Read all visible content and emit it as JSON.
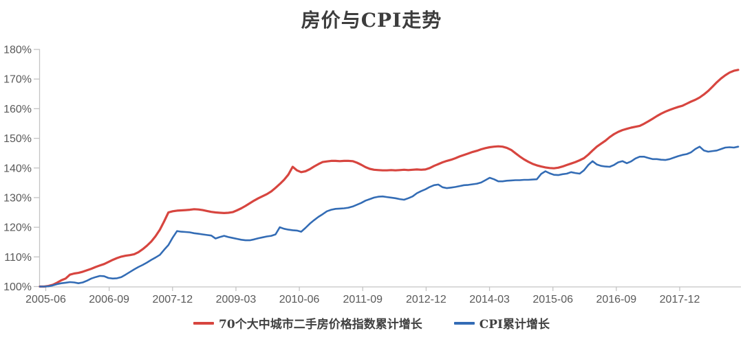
{
  "title": "房价与CPI走势",
  "colors": {
    "house_price_line": "#d7453f",
    "cpi_line": "#336cb5",
    "axis": "#c3c3c3",
    "tick_text": "#595959",
    "title_text": "#3d3d3d"
  },
  "chart_data": {
    "type": "line",
    "title": "房价与CPI走势",
    "xlabel": "",
    "ylabel": "",
    "ylim": [
      100,
      180
    ],
    "y_tick_step": 10,
    "y_tick_labels": [
      "100%",
      "110%",
      "120%",
      "130%",
      "140%",
      "150%",
      "160%",
      "170%",
      "180%"
    ],
    "x_tick_labels": [
      "2005-06",
      "2006-09",
      "2007-12",
      "2009-03",
      "2010-06",
      "2011-09",
      "2012-12",
      "2014-03",
      "2015-06",
      "2016-09",
      "2017-12"
    ],
    "x_tick_interval_months": 15,
    "x_start_month": "2005-06",
    "grid": false,
    "legend_position": "bottom",
    "series": [
      {
        "name": "70个大中城市二手房价格指数累计增长",
        "color": "#d7453f",
        "stroke_width": 3.2,
        "values": [
          100,
          100,
          100.2,
          100.6,
          101.3,
          102.1,
          102.7,
          104.0,
          104.4,
          104.6,
          105.0,
          105.5,
          106.0,
          106.6,
          107.1,
          107.6,
          108.3,
          109.0,
          109.6,
          110.1,
          110.4,
          110.6,
          110.9,
          111.6,
          112.6,
          113.8,
          115.2,
          117.0,
          119.2,
          122.0,
          125.0,
          125.4,
          125.6,
          125.7,
          125.8,
          125.9,
          126.1,
          126.0,
          125.8,
          125.5,
          125.2,
          125.0,
          124.9,
          124.8,
          124.9,
          125.1,
          125.7,
          126.4,
          127.2,
          128.1,
          129.0,
          129.8,
          130.5,
          131.2,
          132.1,
          133.3,
          134.6,
          136.0,
          137.8,
          140.4,
          139.2,
          138.6,
          138.9,
          139.6,
          140.5,
          141.3,
          142.0,
          142.2,
          142.4,
          142.4,
          142.3,
          142.4,
          142.4,
          142.3,
          141.8,
          141.1,
          140.3,
          139.7,
          139.4,
          139.3,
          139.2,
          139.2,
          139.3,
          139.2,
          139.3,
          139.4,
          139.3,
          139.4,
          139.5,
          139.4,
          139.5,
          140.0,
          140.7,
          141.3,
          141.9,
          142.4,
          142.8,
          143.3,
          143.9,
          144.4,
          144.9,
          145.4,
          145.8,
          146.3,
          146.7,
          147.0,
          147.2,
          147.3,
          147.2,
          146.8,
          146.1,
          145.0,
          143.9,
          142.9,
          142.1,
          141.4,
          140.9,
          140.5,
          140.2,
          140.0,
          139.9,
          140.1,
          140.5,
          141.0,
          141.5,
          142.0,
          142.6,
          143.3,
          144.5,
          145.9,
          147.2,
          148.2,
          149.2,
          150.4,
          151.4,
          152.2,
          152.8,
          153.2,
          153.6,
          153.9,
          154.2,
          154.9,
          155.7,
          156.6,
          157.5,
          158.3,
          159.0,
          159.6,
          160.1,
          160.6,
          161.0,
          161.7,
          162.4,
          163.0,
          163.8,
          164.8,
          166.0,
          167.4,
          168.9,
          170.2,
          171.3,
          172.2,
          172.8,
          173.1
        ]
      },
      {
        "name": "CPI累计增长",
        "color": "#336cb5",
        "stroke_width": 2.6,
        "values": [
          100,
          100,
          100.1,
          100.4,
          100.8,
          101.1,
          101.3,
          101.5,
          101.4,
          101.1,
          101.4,
          102.0,
          102.7,
          103.2,
          103.6,
          103.5,
          102.9,
          102.7,
          102.8,
          103.2,
          104.0,
          104.9,
          105.8,
          106.6,
          107.3,
          108.1,
          109.0,
          109.8,
          110.7,
          112.4,
          114.0,
          116.5,
          118.7,
          118.5,
          118.4,
          118.3,
          118.0,
          117.8,
          117.6,
          117.4,
          117.2,
          116.2,
          116.7,
          117.1,
          116.7,
          116.4,
          116.1,
          115.8,
          115.6,
          115.6,
          115.9,
          116.3,
          116.6,
          116.9,
          117.1,
          117.6,
          120.0,
          119.5,
          119.2,
          119.0,
          118.9,
          118.5,
          119.8,
          121.2,
          122.4,
          123.5,
          124.4,
          125.4,
          125.9,
          126.2,
          126.3,
          126.4,
          126.6,
          127.0,
          127.6,
          128.2,
          129.0,
          129.5,
          130.0,
          130.3,
          130.4,
          130.2,
          130.0,
          129.8,
          129.5,
          129.3,
          129.8,
          130.4,
          131.5,
          132.2,
          132.8,
          133.6,
          134.2,
          134.4,
          133.5,
          133.2,
          133.4,
          133.6,
          133.9,
          134.2,
          134.3,
          134.5,
          134.7,
          135.1,
          135.9,
          136.7,
          136.2,
          135.5,
          135.5,
          135.7,
          135.8,
          135.9,
          135.9,
          136.0,
          136.0,
          136.1,
          136.2,
          138.0,
          138.9,
          138.2,
          137.7,
          137.6,
          137.9,
          138.1,
          138.6,
          138.3,
          138.1,
          139.2,
          141.0,
          142.3,
          141.2,
          140.7,
          140.5,
          140.4,
          141.0,
          141.9,
          142.3,
          141.6,
          142.2,
          143.2,
          143.8,
          143.8,
          143.4,
          143.0,
          143.0,
          142.8,
          142.7,
          143.0,
          143.5,
          144.0,
          144.4,
          144.7,
          145.3,
          146.4,
          147.2,
          145.9,
          145.5,
          145.7,
          145.9,
          146.4,
          146.9,
          147.0,
          146.9,
          147.2
        ]
      }
    ]
  }
}
